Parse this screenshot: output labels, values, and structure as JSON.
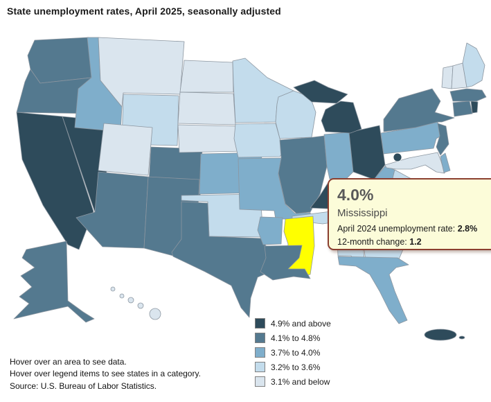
{
  "title": "State unemployment rates, April 2025, seasonally adjusted",
  "tooltip": {
    "value": "4.0%",
    "state": "Mississippi",
    "prev_label": "April 2024 unemployment rate:",
    "prev_value": "2.8%",
    "change_label": "12-month change:",
    "change_value": "1.2",
    "bg_color": "#FCFCD9",
    "border_color": "#8B3E2F"
  },
  "legend": {
    "items": [
      {
        "key": "cat1",
        "label": "4.9% and above",
        "color": "#2E4B5B"
      },
      {
        "key": "cat2",
        "label": "4.1% to 4.8%",
        "color": "#54798F"
      },
      {
        "key": "cat3",
        "label": "3.7% to 4.0%",
        "color": "#7FAECB"
      },
      {
        "key": "cat4",
        "label": "3.2% to 3.6%",
        "color": "#C3DCEC"
      },
      {
        "key": "cat5",
        "label": "3.1% and below",
        "color": "#DAE5EE"
      }
    ]
  },
  "notes": {
    "line1": "Hover over an area to see data.",
    "line2": "Hover over legend items to see states in a category.",
    "line3": "Source: U.S. Bureau of Labor Statistics."
  },
  "map": {
    "border_color": "#8C96A0",
    "highlight_color": "#FFFF00",
    "highlighted_state": "MS",
    "states": [
      {
        "id": "WA",
        "name": "Washington",
        "category": "cat2"
      },
      {
        "id": "OR",
        "name": "Oregon",
        "category": "cat2"
      },
      {
        "id": "CA",
        "name": "California",
        "category": "cat1"
      },
      {
        "id": "NV",
        "name": "Nevada",
        "category": "cat1"
      },
      {
        "id": "ID",
        "name": "Idaho",
        "category": "cat3"
      },
      {
        "id": "MT",
        "name": "Montana",
        "category": "cat5"
      },
      {
        "id": "WY",
        "name": "Wyoming",
        "category": "cat4"
      },
      {
        "id": "UT",
        "name": "Utah",
        "category": "cat5"
      },
      {
        "id": "CO",
        "name": "Colorado",
        "category": "cat2"
      },
      {
        "id": "AZ",
        "name": "Arizona",
        "category": "cat2"
      },
      {
        "id": "NM",
        "name": "New Mexico",
        "category": "cat2"
      },
      {
        "id": "ND",
        "name": "North Dakota",
        "category": "cat5"
      },
      {
        "id": "SD",
        "name": "South Dakota",
        "category": "cat5"
      },
      {
        "id": "NE",
        "name": "Nebraska",
        "category": "cat5"
      },
      {
        "id": "KS",
        "name": "Kansas",
        "category": "cat3"
      },
      {
        "id": "OK",
        "name": "Oklahoma",
        "category": "cat4"
      },
      {
        "id": "TX",
        "name": "Texas",
        "category": "cat2"
      },
      {
        "id": "MN",
        "name": "Minnesota",
        "category": "cat4"
      },
      {
        "id": "WI",
        "name": "Wisconsin",
        "category": "cat4"
      },
      {
        "id": "IA",
        "name": "Iowa",
        "category": "cat4"
      },
      {
        "id": "MO",
        "name": "Missouri",
        "category": "cat3"
      },
      {
        "id": "IL",
        "name": "Illinois",
        "category": "cat2"
      },
      {
        "id": "IN",
        "name": "Indiana",
        "category": "cat3"
      },
      {
        "id": "OH",
        "name": "Ohio",
        "category": "cat1"
      },
      {
        "id": "MI",
        "name": "Michigan",
        "category": "cat1"
      },
      {
        "id": "KY",
        "name": "Kentucky",
        "category": "cat1"
      },
      {
        "id": "TN",
        "name": "Tennessee",
        "category": "cat4"
      },
      {
        "id": "WV",
        "name": "West Virginia",
        "category": "cat3"
      },
      {
        "id": "VA",
        "name": "Virginia",
        "category": "cat4"
      },
      {
        "id": "MD",
        "name": "Maryland",
        "category": "cat5"
      },
      {
        "id": "DE",
        "name": "Delaware",
        "category": "cat3"
      },
      {
        "id": "PA",
        "name": "Pennsylvania",
        "category": "cat3"
      },
      {
        "id": "NJ",
        "name": "New Jersey",
        "category": "cat2"
      },
      {
        "id": "NY",
        "name": "New York",
        "category": "cat2"
      },
      {
        "id": "VT",
        "name": "Vermont",
        "category": "cat5"
      },
      {
        "id": "NH",
        "name": "New Hampshire",
        "category": "cat5"
      },
      {
        "id": "ME",
        "name": "Maine",
        "category": "cat4"
      },
      {
        "id": "MA",
        "name": "Massachusetts",
        "category": "cat2"
      },
      {
        "id": "CT",
        "name": "Connecticut",
        "category": "cat2"
      },
      {
        "id": "RI",
        "name": "Rhode Island",
        "category": "cat1"
      },
      {
        "id": "NC",
        "name": "North Carolina",
        "category": "cat3"
      },
      {
        "id": "SC",
        "name": "South Carolina",
        "category": "cat2"
      },
      {
        "id": "GA",
        "name": "Georgia",
        "category": "cat4"
      },
      {
        "id": "AL",
        "name": "Alabama",
        "category": "cat4"
      },
      {
        "id": "MS",
        "name": "Mississippi",
        "category": "cat3"
      },
      {
        "id": "AR",
        "name": "Arkansas",
        "category": "cat3"
      },
      {
        "id": "LA",
        "name": "Louisiana",
        "category": "cat2"
      },
      {
        "id": "FL",
        "name": "Florida",
        "category": "cat3"
      },
      {
        "id": "AK",
        "name": "Alaska",
        "category": "cat2"
      },
      {
        "id": "HI",
        "name": "Hawaii",
        "category": "cat5"
      },
      {
        "id": "DC",
        "name": "District of Columbia",
        "category": "cat1"
      },
      {
        "id": "PR",
        "name": "Puerto Rico",
        "category": "cat1"
      }
    ]
  }
}
